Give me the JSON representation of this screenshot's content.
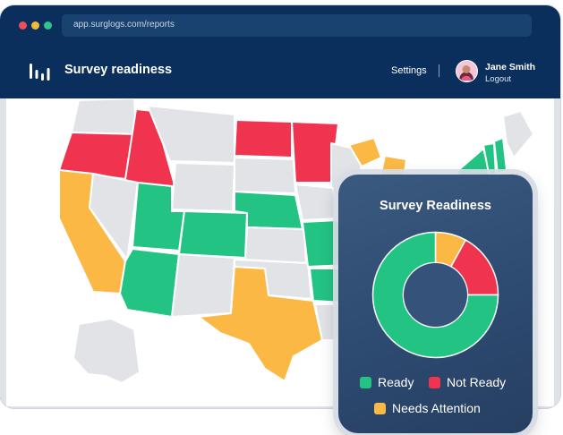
{
  "browser": {
    "url": "app.surglogs.com/reports"
  },
  "header": {
    "title": "Survey readiness",
    "settings_label": "Settings",
    "user_name": "Jane Smith",
    "logout_label": "Logout"
  },
  "colors": {
    "ready": "#23c383",
    "not_ready": "#f0334f",
    "needs_attention": "#fbb845",
    "neutral_state": "#e1e3e7",
    "navy": "#0a2f5c"
  },
  "panel": {
    "title": "Survey Readiness",
    "legend": [
      {
        "label": "Ready",
        "color": "#23c383"
      },
      {
        "label": "Not Ready",
        "color": "#f0334f"
      },
      {
        "label": "Needs Attention",
        "color": "#fbb845"
      }
    ]
  },
  "chart_data": {
    "type": "pie",
    "title": "Survey Readiness",
    "categories": [
      "Ready",
      "Not Ready",
      "Needs Attention"
    ],
    "values": [
      75,
      17,
      8
    ],
    "colors": [
      "#23c383",
      "#f0334f",
      "#fbb845"
    ],
    "legend": "bottom"
  }
}
